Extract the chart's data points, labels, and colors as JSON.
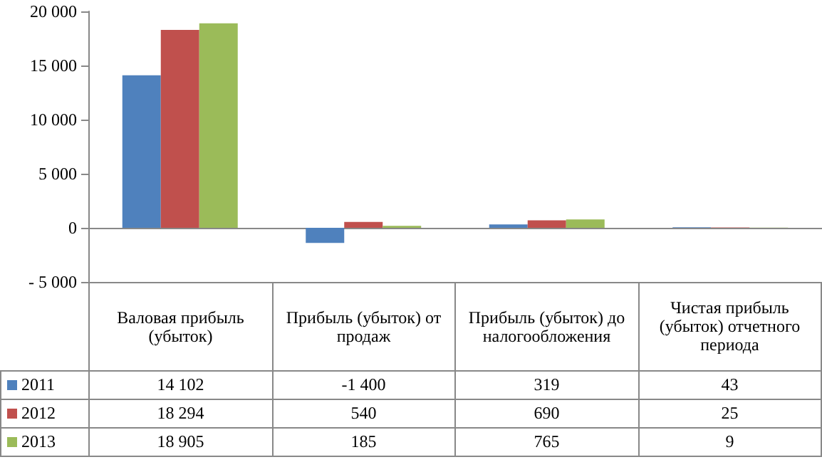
{
  "chart_data": {
    "type": "bar",
    "categories": [
      "Валовая прибыль (убыток)",
      "Прибыль (убыток) от продаж",
      "Прибыль (убыток) до налогообложения",
      "Чистая прибыль (убыток) отчетного периода"
    ],
    "series": [
      {
        "name": "2011",
        "color": "#4f81bd",
        "values": [
          14102,
          -1400,
          319,
          43
        ],
        "value_labels": [
          "14 102",
          "-1 400",
          "319",
          "43"
        ]
      },
      {
        "name": "2012",
        "color": "#c0504d",
        "values": [
          18294,
          540,
          690,
          25
        ],
        "value_labels": [
          "18 294",
          "540",
          "690",
          "25"
        ]
      },
      {
        "name": "2013",
        "color": "#9bbb59",
        "values": [
          18905,
          185,
          765,
          9
        ],
        "value_labels": [
          "18 905",
          "185",
          "765",
          "9"
        ]
      }
    ],
    "ylim": [
      -5000,
      20000
    ],
    "yticks": [
      {
        "value": -5000,
        "label": "- 5 000"
      },
      0,
      {
        "value": 5000,
        "label": "5 000"
      },
      {
        "value": 10000,
        "label": "10 000"
      },
      {
        "value": 15000,
        "label": "15 000"
      },
      {
        "value": 20000,
        "label": "20 000"
      }
    ],
    "legend": "bottom"
  }
}
